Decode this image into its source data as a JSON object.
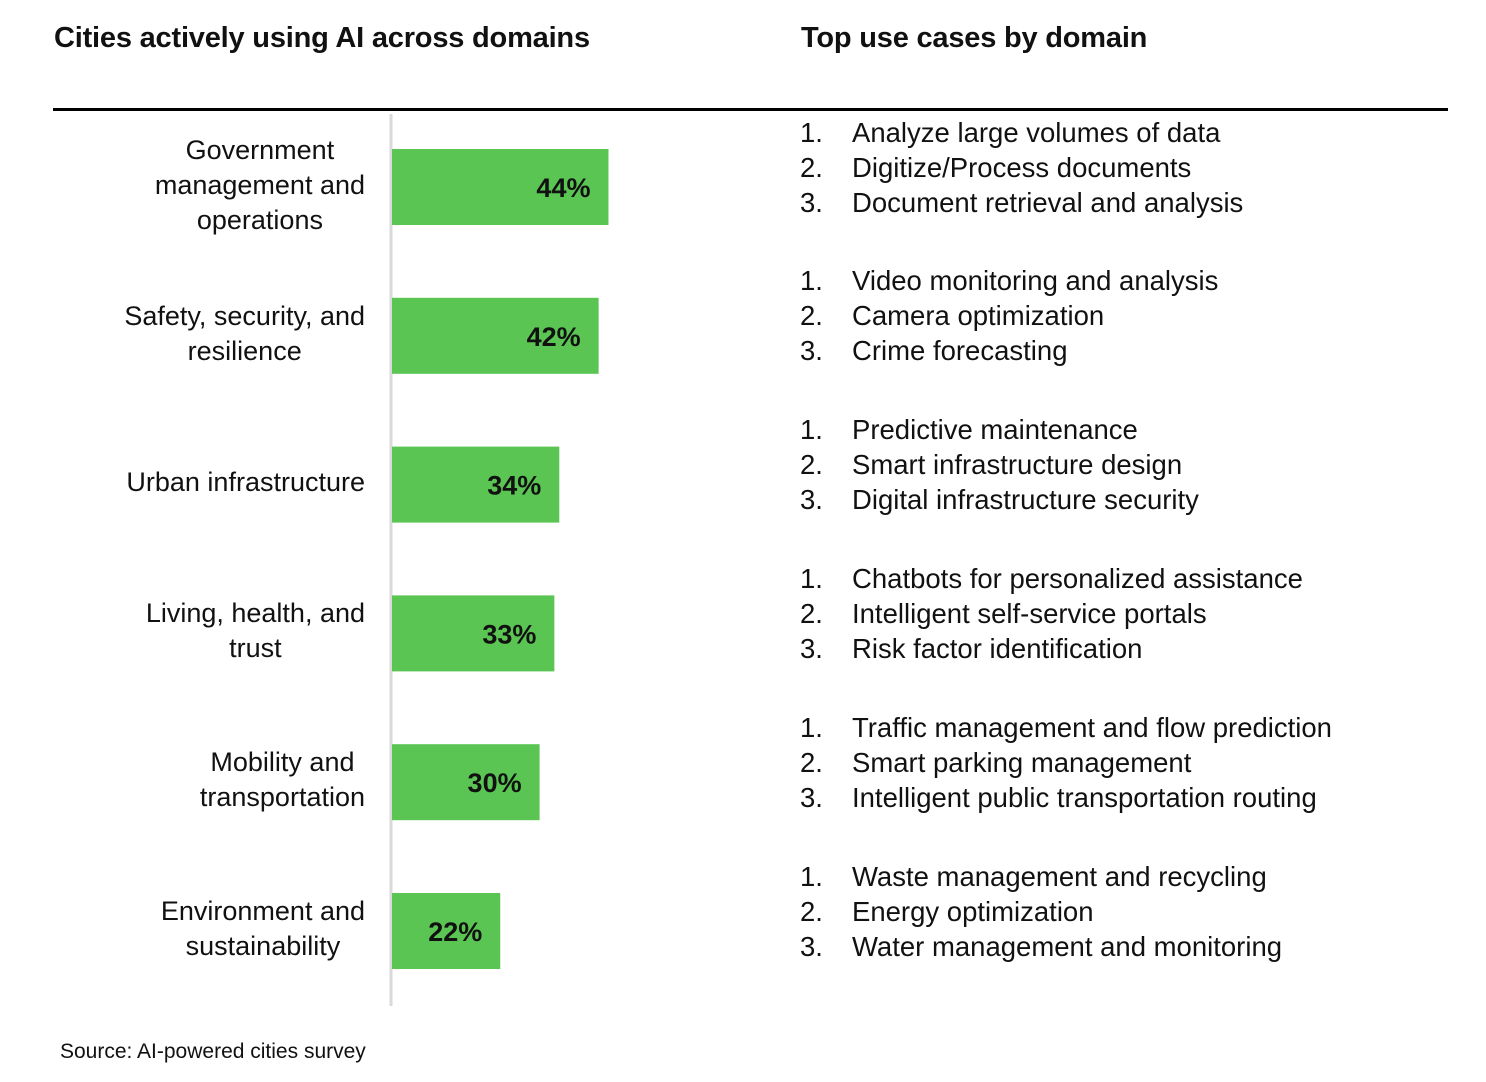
{
  "headings": {
    "left": "Cities actively using AI across domains",
    "right": "Top use cases by domain"
  },
  "colors": {
    "bar": "#5ac553",
    "axis": "#d9d9d9",
    "rule": "#000000",
    "text": "#111111"
  },
  "chart_data": {
    "type": "bar",
    "orientation": "horizontal",
    "title": "Cities actively using AI across domains",
    "categories": [
      "Government management and operations",
      "Safety, security, and resilience",
      "Urban infrastructure",
      "Living, health, and trust",
      "Mobility and transportation",
      "Environment and sustainability"
    ],
    "category_display": [
      "Government\nmanagement and\noperations",
      "Safety, security, and\nresilience",
      "Urban infrastructure",
      "Living, health, and\ntrust",
      "Mobility and\ntransportation",
      "Environment and\nsustainability"
    ],
    "values": [
      44,
      42,
      34,
      33,
      30,
      22
    ],
    "value_labels": [
      "44%",
      "42%",
      "34%",
      "33%",
      "30%",
      "22%"
    ],
    "unit": "%",
    "xlim": [
      0,
      100
    ],
    "grid": false,
    "legend": false
  },
  "use_cases": [
    [
      "Analyze large volumes of data",
      "Digitize/Process documents",
      "Document retrieval and analysis"
    ],
    [
      "Video monitoring and analysis",
      "Camera optimization",
      "Crime forecasting"
    ],
    [
      "Predictive maintenance",
      "Smart infrastructure design",
      "Digital infrastructure security"
    ],
    [
      "Chatbots for personalized assistance",
      "Intelligent self-service portals",
      "Risk factor identification"
    ],
    [
      "Traffic management and flow prediction",
      "Smart parking management",
      "Intelligent public transportation routing"
    ],
    [
      "Waste management and recycling",
      "Energy optimization",
      "Water management and monitoring"
    ]
  ],
  "use_case_numbers": [
    "1.",
    "2.",
    "3."
  ],
  "source": "Source: AI-powered cities survey"
}
